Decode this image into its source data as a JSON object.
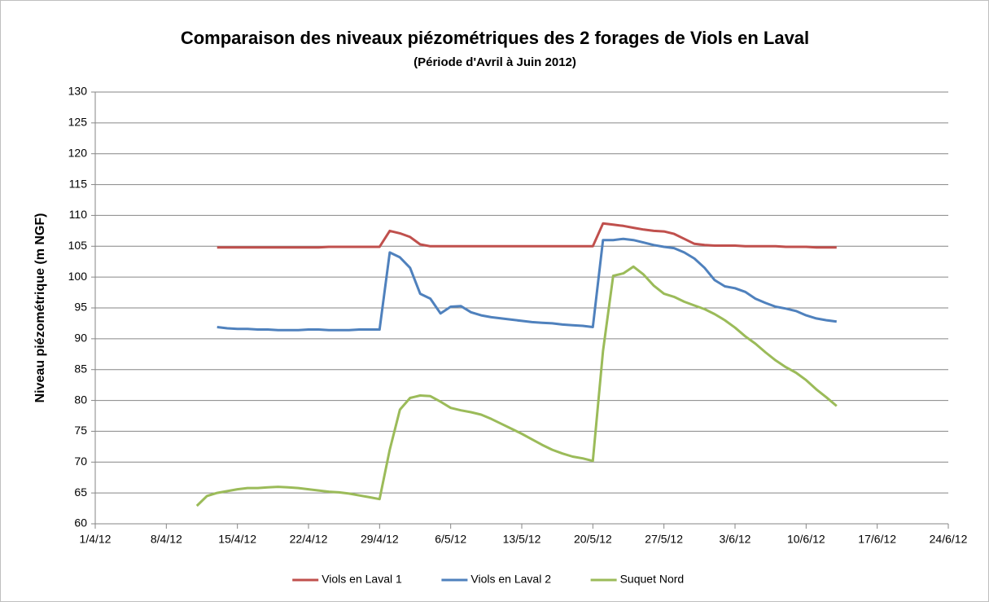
{
  "chart_data": {
    "type": "line",
    "title": "Comparaison des niveaux piézométriques des 2 forages de Viols en Laval",
    "subtitle": "(Période d'Avril à Juin 2012)",
    "y_label": "Niveau piézométrique (m NGF)",
    "x": [
      "11/4/12",
      "12/4/12",
      "13/4/12",
      "14/4/12",
      "15/4/12",
      "16/4/12",
      "17/4/12",
      "18/4/12",
      "19/4/12",
      "20/4/12",
      "21/4/12",
      "22/4/12",
      "23/4/12",
      "24/4/12",
      "25/4/12",
      "26/4/12",
      "27/4/12",
      "28/4/12",
      "29/4/12",
      "30/4/12",
      "1/5/12",
      "2/5/12",
      "3/5/12",
      "4/5/12",
      "5/5/12",
      "6/5/12",
      "7/5/12",
      "8/5/12",
      "9/5/12",
      "10/5/12",
      "11/5/12",
      "12/5/12",
      "13/5/12",
      "14/5/12",
      "15/5/12",
      "16/5/12",
      "17/5/12",
      "18/5/12",
      "19/5/12",
      "20/5/12",
      "21/5/12",
      "22/5/12",
      "23/5/12",
      "24/5/12",
      "25/5/12",
      "26/5/12",
      "27/5/12",
      "28/5/12",
      "29/5/12",
      "30/5/12",
      "31/5/12",
      "1/6/12",
      "2/6/12",
      "3/6/12",
      "4/6/12",
      "5/6/12",
      "6/6/12",
      "7/6/12",
      "8/6/12",
      "9/6/12",
      "10/6/12",
      "11/6/12",
      "12/6/12",
      "13/6/12"
    ],
    "series": [
      {
        "name": "Viols en Laval 1",
        "color": "#c0504d",
        "values": [
          null,
          null,
          104.8,
          104.8,
          104.8,
          104.8,
          104.8,
          104.8,
          104.8,
          104.8,
          104.8,
          104.8,
          104.8,
          104.9,
          104.9,
          104.9,
          104.9,
          104.9,
          104.9,
          107.5,
          107.1,
          106.5,
          105.3,
          105.0,
          105.0,
          105.0,
          105.0,
          105.0,
          105.0,
          105.0,
          105.0,
          105.0,
          105.0,
          105.0,
          105.0,
          105.0,
          105.0,
          105.0,
          105.0,
          105.0,
          108.7,
          108.5,
          108.3,
          108.0,
          107.7,
          107.5,
          107.4,
          107.0,
          106.2,
          105.4,
          105.2,
          105.1,
          105.1,
          105.1,
          105.0,
          105.0,
          105.0,
          105.0,
          104.9,
          104.9,
          104.9,
          104.8,
          104.8,
          104.8
        ]
      },
      {
        "name": "Viols en Laval 2",
        "color": "#4f81bd",
        "values": [
          null,
          null,
          91.9,
          91.7,
          91.6,
          91.6,
          91.5,
          91.5,
          91.4,
          91.4,
          91.4,
          91.5,
          91.5,
          91.4,
          91.4,
          91.4,
          91.5,
          91.5,
          91.5,
          104.0,
          103.2,
          101.5,
          97.3,
          96.5,
          94.1,
          95.2,
          95.3,
          94.3,
          93.8,
          93.5,
          93.3,
          93.1,
          92.9,
          92.7,
          92.6,
          92.5,
          92.3,
          92.2,
          92.1,
          91.9,
          106.0,
          106.0,
          106.2,
          106.0,
          105.6,
          105.2,
          104.9,
          104.7,
          104.0,
          103.0,
          101.5,
          99.5,
          98.5,
          98.2,
          97.6,
          96.5,
          95.8,
          95.2,
          94.9,
          94.5,
          93.8,
          93.3,
          93.0,
          92.8
        ]
      },
      {
        "name": "Suquet Nord",
        "color": "#9bbb59",
        "values": [
          62.9,
          64.5,
          65.0,
          65.3,
          65.6,
          65.8,
          65.8,
          65.9,
          66.0,
          65.9,
          65.8,
          65.6,
          65.4,
          65.2,
          65.1,
          64.9,
          64.6,
          64.3,
          64.0,
          72.0,
          78.5,
          80.4,
          80.8,
          80.7,
          79.8,
          78.8,
          78.4,
          78.1,
          77.7,
          77.0,
          76.2,
          75.4,
          74.6,
          73.7,
          72.8,
          72.0,
          71.4,
          70.9,
          70.6,
          70.2,
          88.0,
          100.2,
          100.6,
          101.7,
          100.4,
          98.6,
          97.3,
          96.8,
          96.0,
          95.4,
          94.8,
          94.0,
          93.0,
          91.8,
          90.4,
          89.2,
          87.8,
          86.5,
          85.4,
          84.5,
          83.3,
          81.8,
          80.5,
          79.1
        ]
      }
    ],
    "xlim": [
      "1/4/12",
      "24/6/12"
    ],
    "xticks": [
      "1/4/12",
      "8/4/12",
      "15/4/12",
      "22/4/12",
      "29/4/12",
      "6/5/12",
      "13/5/12",
      "20/5/12",
      "27/5/12",
      "3/6/12",
      "10/6/12",
      "17/6/12",
      "24/6/12"
    ],
    "ylim": [
      60,
      130
    ],
    "yticks": [
      60,
      65,
      70,
      75,
      80,
      85,
      90,
      95,
      100,
      105,
      110,
      115,
      120,
      125,
      130
    ],
    "grid": true,
    "legend": "bottom"
  }
}
